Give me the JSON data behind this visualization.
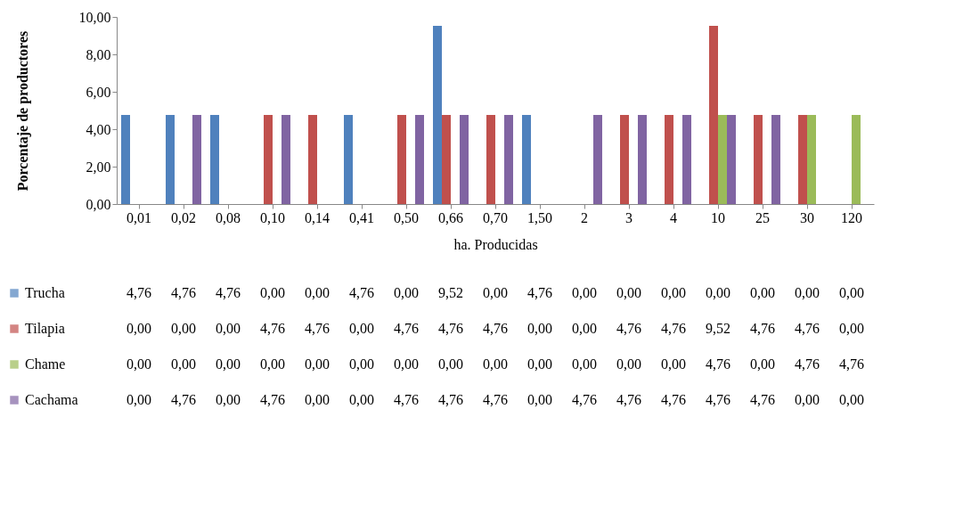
{
  "chart_data": {
    "type": "bar",
    "ylabel": "Porcentaje de productores",
    "xlabel": "ha. Producidas",
    "categories": [
      "0,01",
      "0,02",
      "0,08",
      "0,10",
      "0,14",
      "0,41",
      "0,50",
      "0,66",
      "0,70",
      "1,50",
      "2",
      "3",
      "4",
      "10",
      "25",
      "30",
      "120"
    ],
    "series": [
      {
        "name": "Trucha",
        "color": "#4f81bd",
        "values": [
          4.76,
          4.76,
          4.76,
          0,
          0,
          4.76,
          0,
          9.52,
          0,
          4.76,
          0,
          0,
          0,
          0,
          0,
          0,
          0
        ],
        "value_labels": [
          "4,76",
          "4,76",
          "4,76",
          "0,00",
          "0,00",
          "4,76",
          "0,00",
          "9,52",
          "0,00",
          "4,76",
          "0,00",
          "0,00",
          "0,00",
          "0,00",
          "0,00",
          "0,00",
          "0,00"
        ]
      },
      {
        "name": "Tilapia",
        "color": "#c0504d",
        "values": [
          0,
          0,
          0,
          4.76,
          4.76,
          0,
          4.76,
          4.76,
          4.76,
          0,
          0,
          4.76,
          4.76,
          9.52,
          4.76,
          4.76,
          0
        ],
        "value_labels": [
          "0,00",
          "0,00",
          "0,00",
          "4,76",
          "4,76",
          "0,00",
          "4,76",
          "4,76",
          "4,76",
          "0,00",
          "0,00",
          "4,76",
          "4,76",
          "9,52",
          "4,76",
          "4,76",
          "0,00"
        ]
      },
      {
        "name": "Chame",
        "color": "#9bbb59",
        "values": [
          0,
          0,
          0,
          0,
          0,
          0,
          0,
          0,
          0,
          0,
          0,
          0,
          0,
          4.76,
          0,
          4.76,
          4.76
        ],
        "value_labels": [
          "0,00",
          "0,00",
          "0,00",
          "0,00",
          "0,00",
          "0,00",
          "0,00",
          "0,00",
          "0,00",
          "0,00",
          "0,00",
          "0,00",
          "0,00",
          "4,76",
          "0,00",
          "4,76",
          "4,76"
        ]
      },
      {
        "name": "Cachama",
        "color": "#8064a2",
        "values": [
          0,
          4.76,
          0,
          4.76,
          0,
          0,
          4.76,
          4.76,
          4.76,
          0,
          4.76,
          4.76,
          4.76,
          4.76,
          4.76,
          0,
          0
        ],
        "value_labels": [
          "0,00",
          "4,76",
          "0,00",
          "4,76",
          "0,00",
          "0,00",
          "4,76",
          "4,76",
          "4,76",
          "0,00",
          "4,76",
          "4,76",
          "4,76",
          "4,76",
          "4,76",
          "0,00",
          "0,00"
        ]
      }
    ],
    "ylim": [
      0,
      10
    ],
    "yticks": [
      {
        "value": 0,
        "label": "0,00"
      },
      {
        "value": 2,
        "label": "2,00"
      },
      {
        "value": 4,
        "label": "4,00"
      },
      {
        "value": 6,
        "label": "6,00"
      },
      {
        "value": 8,
        "label": "8,00"
      },
      {
        "value": 10,
        "label": "10,00"
      }
    ],
    "grid": false,
    "legend": "bottom"
  }
}
